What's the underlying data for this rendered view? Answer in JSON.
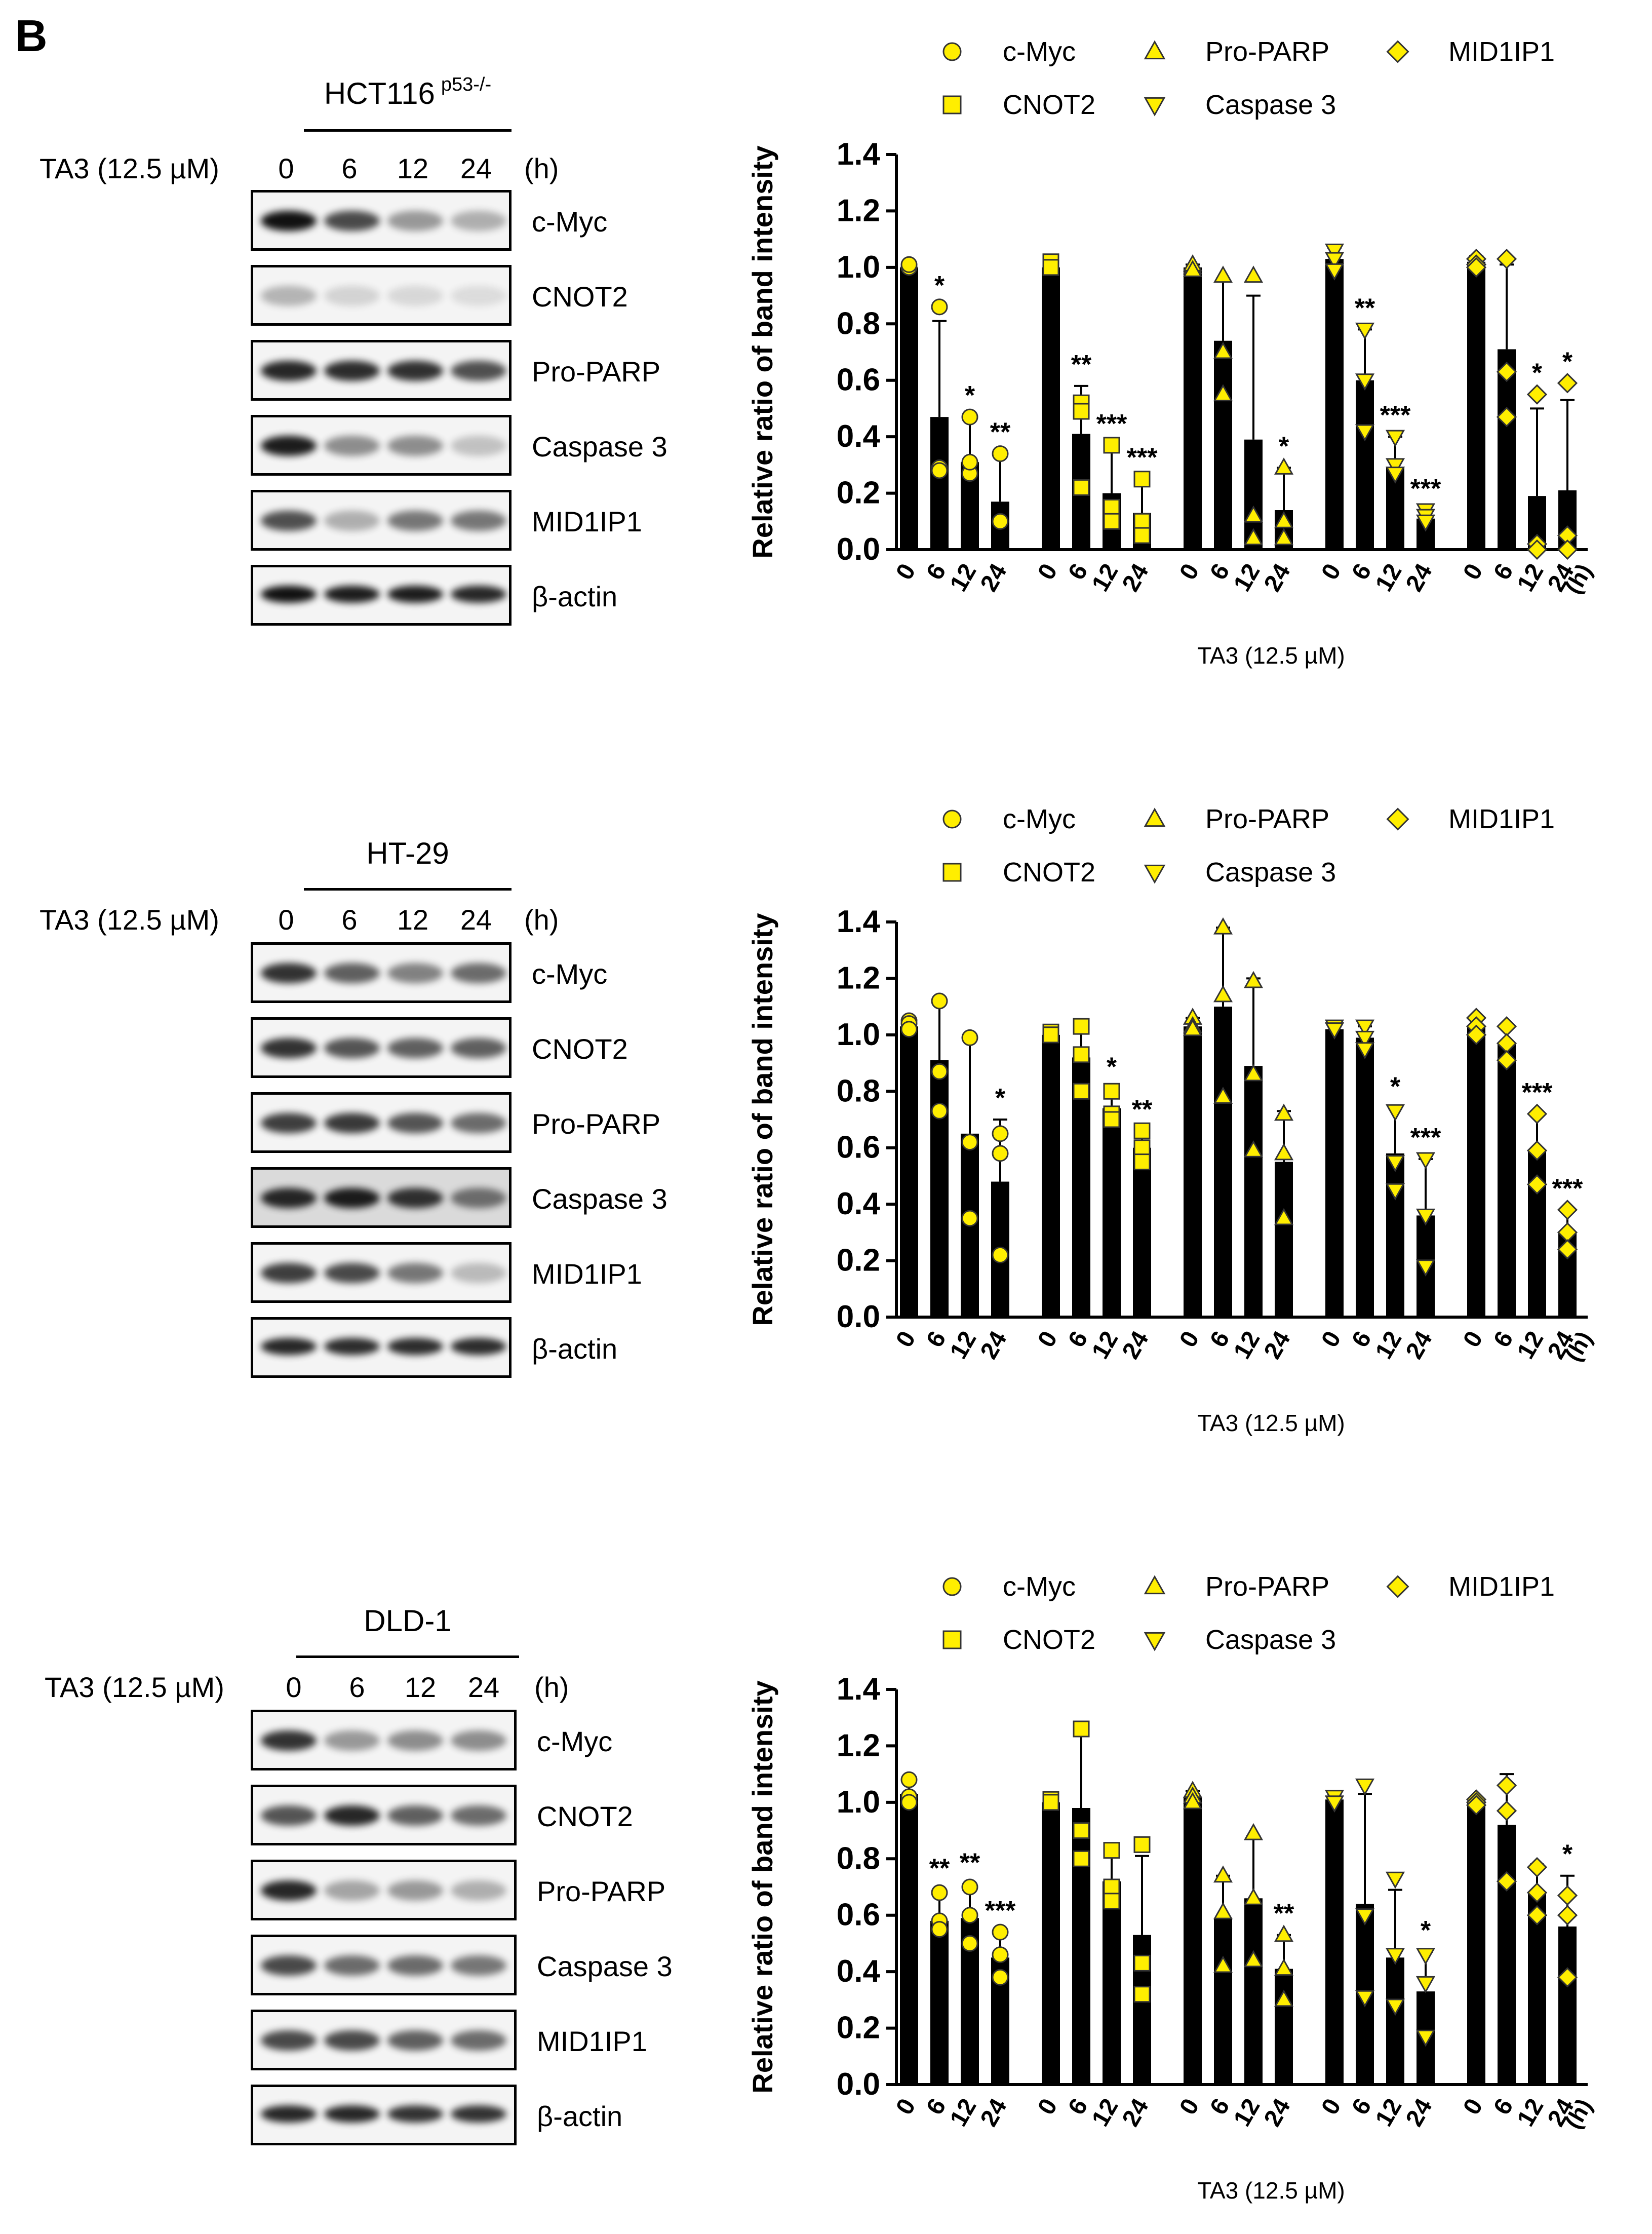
{
  "panel_label": "B",
  "blots": [
    {
      "cell_line": "HCT116",
      "cell_sup": "p53-/-",
      "treatment": "TA3 (12.5 µM)",
      "times": [
        "0",
        "6",
        "12",
        "24"
      ],
      "unit": "(h)",
      "proteins": [
        "c-Myc",
        "CNOT2",
        "Pro-PARP",
        "Caspase 3",
        "MID1IP1",
        "β-actin"
      ]
    },
    {
      "cell_line": "HT-29",
      "cell_sup": "",
      "treatment": "TA3 (12.5 µM)",
      "times": [
        "0",
        "6",
        "12",
        "24"
      ],
      "unit": "(h)",
      "proteins": [
        "c-Myc",
        "CNOT2",
        "Pro-PARP",
        "Caspase 3",
        "MID1IP1",
        "β-actin"
      ]
    },
    {
      "cell_line": "DLD-1",
      "cell_sup": "",
      "treatment": "TA3 (12.5 µM)",
      "times": [
        "0",
        "6",
        "12",
        "24"
      ],
      "unit": "(h)",
      "proteins": [
        "c-Myc",
        "CNOT2",
        "Pro-PARP",
        "Caspase 3",
        "MID1IP1",
        "β-actin"
      ]
    }
  ],
  "colors": {
    "bar": "#000000",
    "marker": "#ffee00",
    "marker_stroke": "#333333"
  },
  "chart_data": [
    {
      "type": "bar",
      "cell_line": "HCT116 p53-/-",
      "ylabel": "Relative ratio of band intensity",
      "xlabel": "TA3 (12.5 µM)",
      "x_unit": "(h)",
      "categories": [
        "0",
        "6",
        "12",
        "24"
      ],
      "ylim": [
        0,
        1.4
      ],
      "yticks": [
        "0.0",
        "0.2",
        "0.4",
        "0.6",
        "0.8",
        "1.0",
        "1.2",
        "1.4"
      ],
      "legend": [
        "c-Myc",
        "CNOT2",
        "Pro-PARP",
        "Caspase 3",
        "MID1IP1"
      ],
      "series": [
        {
          "name": "c-Myc",
          "marker": "circle",
          "values": [
            1.0,
            0.47,
            0.31,
            0.17
          ],
          "err": [
            0.01,
            0.34,
            0.15,
            0.16
          ],
          "points": [
            [
              1.0,
              1.0,
              1.01
            ],
            [
              0.86,
              0.29,
              0.28
            ],
            [
              0.47,
              0.27,
              0.31
            ],
            [
              0.34,
              0.1,
              0.1
            ]
          ],
          "sig": [
            "",
            "*",
            "*",
            "**"
          ]
        },
        {
          "name": "CNOT2",
          "marker": "square",
          "values": [
            1.0,
            0.41,
            0.2,
            0.13
          ],
          "err": [
            0.02,
            0.17,
            0.17,
            0.12
          ],
          "points": [
            [
              1.02,
              1.0,
              1.0
            ],
            [
              0.52,
              0.49,
              0.22
            ],
            [
              0.37,
              0.15,
              0.1
            ],
            [
              0.25,
              0.1,
              0.05
            ]
          ],
          "sig": [
            "",
            "**",
            "***",
            "***"
          ]
        },
        {
          "name": "Pro-PARP",
          "marker": "triangle-up",
          "values": [
            1.0,
            0.74,
            0.39,
            0.14
          ],
          "err": [
            0.01,
            0.22,
            0.51,
            0.15
          ],
          "points": [
            [
              1.0,
              1.01,
              0.99
            ],
            [
              0.97,
              0.7,
              0.55
            ],
            [
              0.97,
              0.12,
              0.04
            ],
            [
              0.29,
              0.1,
              0.04
            ]
          ],
          "sig": [
            "",
            "",
            "",
            "*"
          ]
        },
        {
          "name": "Caspase 3",
          "marker": "triangle-down",
          "values": [
            1.03,
            0.6,
            0.29,
            0.11
          ],
          "err": [
            0.04,
            0.18,
            0.11,
            0.03
          ],
          "points": [
            [
              1.06,
              1.03,
              0.99
            ],
            [
              0.78,
              0.6,
              0.42
            ],
            [
              0.4,
              0.3,
              0.27
            ],
            [
              0.14,
              0.12,
              0.1
            ]
          ],
          "sig": [
            "",
            "**",
            "***",
            "***"
          ]
        },
        {
          "name": "MID1IP1",
          "marker": "diamond",
          "values": [
            1.02,
            0.71,
            0.19,
            0.21
          ],
          "err": [
            0.02,
            0.3,
            0.31,
            0.32
          ],
          "points": [
            [
              1.03,
              1.01,
              1.0
            ],
            [
              1.03,
              0.63,
              0.47
            ],
            [
              0.55,
              0.02,
              0.0
            ],
            [
              0.59,
              0.05,
              0.0
            ]
          ],
          "sig": [
            "",
            "",
            "*",
            "*"
          ]
        }
      ]
    },
    {
      "type": "bar",
      "cell_line": "HT-29",
      "ylabel": "Relative ratio of band intensity",
      "xlabel": "TA3 (12.5 µM)",
      "x_unit": "(h)",
      "categories": [
        "0",
        "6",
        "12",
        "24"
      ],
      "ylim": [
        0,
        1.4
      ],
      "yticks": [
        "0.0",
        "0.2",
        "0.4",
        "0.6",
        "0.8",
        "1.0",
        "1.2",
        "1.4"
      ],
      "legend": [
        "c-Myc",
        "CNOT2",
        "Pro-PARP",
        "Caspase 3",
        "MID1IP1"
      ],
      "series": [
        {
          "name": "c-Myc",
          "marker": "circle",
          "values": [
            1.03,
            0.91,
            0.65,
            0.48
          ],
          "err": [
            0.03,
            0.22,
            0.34,
            0.22
          ],
          "points": [
            [
              1.05,
              1.04,
              1.02
            ],
            [
              1.12,
              0.87,
              0.73
            ],
            [
              0.99,
              0.62,
              0.35
            ],
            [
              0.65,
              0.58,
              0.22
            ]
          ],
          "sig": [
            "",
            "",
            "",
            "*"
          ]
        },
        {
          "name": "CNOT2",
          "marker": "square",
          "values": [
            1.0,
            0.92,
            0.74,
            0.6
          ],
          "err": [
            0.01,
            0.1,
            0.07,
            0.06
          ],
          "points": [
            [
              1.01,
              1.0,
              1.0
            ],
            [
              1.03,
              0.93,
              0.8
            ],
            [
              0.8,
              0.72,
              0.7
            ],
            [
              0.66,
              0.6,
              0.55
            ]
          ],
          "sig": [
            "",
            "",
            "*",
            "**"
          ]
        },
        {
          "name": "Pro-PARP",
          "marker": "triangle-up",
          "values": [
            1.03,
            1.1,
            0.89,
            0.55
          ],
          "err": [
            0.03,
            0.28,
            0.31,
            0.18
          ],
          "points": [
            [
              1.06,
              1.03,
              1.02
            ],
            [
              1.38,
              1.14,
              0.78
            ],
            [
              1.19,
              0.86,
              0.59
            ],
            [
              0.72,
              0.58,
              0.35
            ]
          ],
          "sig": [
            "",
            "",
            "",
            ""
          ]
        },
        {
          "name": "Caspase 3",
          "marker": "triangle-down",
          "values": [
            1.02,
            0.99,
            0.58,
            0.36
          ],
          "err": [
            0.01,
            0.04,
            0.16,
            0.2
          ],
          "points": [
            [
              1.03,
              1.02,
              1.02
            ],
            [
              1.03,
              0.99,
              0.95
            ],
            [
              0.73,
              0.55,
              0.45
            ],
            [
              0.56,
              0.36,
              0.18
            ]
          ],
          "sig": [
            "",
            "",
            "*",
            "***"
          ]
        },
        {
          "name": "MID1IP1",
          "marker": "diamond",
          "values": [
            1.03,
            0.97,
            0.59,
            0.3
          ],
          "err": [
            0.03,
            0.06,
            0.13,
            0.08
          ],
          "points": [
            [
              1.06,
              1.03,
              1.0
            ],
            [
              1.03,
              0.97,
              0.91
            ],
            [
              0.72,
              0.59,
              0.47
            ],
            [
              0.38,
              0.3,
              0.24
            ]
          ],
          "sig": [
            "",
            "",
            "***",
            "***"
          ]
        }
      ]
    },
    {
      "type": "bar",
      "cell_line": "DLD-1",
      "ylabel": "Relative ratio of band intensity",
      "xlabel": "TA3 (12.5 µM)",
      "x_unit": "(h)",
      "categories": [
        "0",
        "6",
        "12",
        "24"
      ],
      "ylim": [
        0,
        1.4
      ],
      "yticks": [
        "0.0",
        "0.2",
        "0.4",
        "0.6",
        "0.8",
        "1.0",
        "1.2",
        "1.4"
      ],
      "legend": [
        "c-Myc",
        "CNOT2",
        "Pro-PARP",
        "Caspase 3",
        "MID1IP1"
      ],
      "series": [
        {
          "name": "c-Myc",
          "marker": "circle",
          "values": [
            1.03,
            0.58,
            0.59,
            0.45
          ],
          "err": [
            0.05,
            0.11,
            0.12,
            0.09
          ],
          "points": [
            [
              1.08,
              1.02,
              1.0
            ],
            [
              0.68,
              0.58,
              0.55
            ],
            [
              0.7,
              0.6,
              0.5
            ],
            [
              0.54,
              0.46,
              0.38
            ]
          ],
          "sig": [
            "",
            "**",
            "**",
            "***"
          ]
        },
        {
          "name": "CNOT2",
          "marker": "square",
          "values": [
            1.0,
            0.98,
            0.72,
            0.53
          ],
          "err": [
            0.01,
            0.28,
            0.12,
            0.28
          ],
          "points": [
            [
              1.01,
              1.0,
              1.0
            ],
            [
              1.26,
              0.9,
              0.8
            ],
            [
              0.83,
              0.7,
              0.65
            ],
            [
              0.85,
              0.43,
              0.32
            ]
          ],
          "sig": [
            "",
            "",
            "",
            ""
          ]
        },
        {
          "name": "Pro-PARP",
          "marker": "triangle-up",
          "values": [
            1.02,
            0.59,
            0.66,
            0.41
          ],
          "err": [
            0.02,
            0.15,
            0.22,
            0.12
          ],
          "points": [
            [
              1.04,
              1.02,
              1.0
            ],
            [
              0.74,
              0.61,
              0.42
            ],
            [
              0.89,
              0.66,
              0.44
            ],
            [
              0.53,
              0.41,
              0.3
            ]
          ],
          "sig": [
            "",
            "",
            "",
            "**"
          ]
        },
        {
          "name": "Caspase 3",
          "marker": "triangle-down",
          "values": [
            1.01,
            0.64,
            0.45,
            0.33
          ],
          "err": [
            0.02,
            0.39,
            0.24,
            0.14
          ],
          "points": [
            [
              1.02,
              1.0,
              1.0
            ],
            [
              1.06,
              0.6,
              0.31
            ],
            [
              0.73,
              0.46,
              0.28
            ],
            [
              0.46,
              0.36,
              0.17
            ]
          ],
          "sig": [
            "",
            "",
            "",
            "*"
          ]
        },
        {
          "name": "MID1IP1",
          "marker": "diamond",
          "values": [
            1.0,
            0.92,
            0.68,
            0.56
          ],
          "err": [
            0.01,
            0.18,
            0.1,
            0.18
          ],
          "points": [
            [
              1.01,
              1.0,
              0.99
            ],
            [
              1.06,
              0.97,
              0.72
            ],
            [
              0.77,
              0.68,
              0.6
            ],
            [
              0.67,
              0.6,
              0.38
            ]
          ],
          "sig": [
            "",
            "",
            "",
            "*"
          ]
        }
      ]
    }
  ]
}
